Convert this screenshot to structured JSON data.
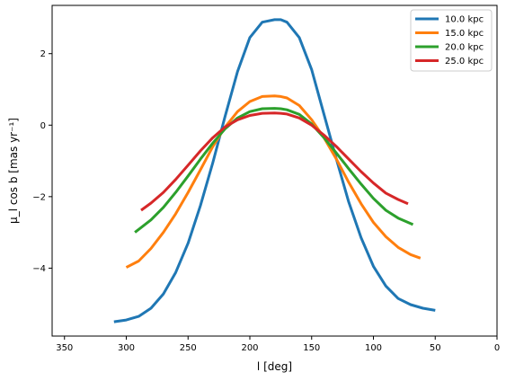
{
  "chart_data": {
    "type": "line",
    "xlabel": "l [deg]",
    "ylabel": "μ_l cos b [mas yr⁻¹]",
    "xlim": [
      360,
      0
    ],
    "ylim": [
      -5.9,
      3.35
    ],
    "x_inverted": true,
    "grid": false,
    "legend_position": "top-right",
    "xticks": [
      350,
      300,
      250,
      200,
      150,
      100,
      50,
      0
    ],
    "yticks": [
      2,
      0,
      -2,
      -4
    ],
    "xtick_labels": [
      "350",
      "300",
      "250",
      "200",
      "150",
      "100",
      "50",
      "0"
    ],
    "ytick_labels": [
      "2",
      "0",
      "−2",
      "−4"
    ],
    "series": [
      {
        "name": "10.0 kpc",
        "color": "#1f77b4",
        "x": [
          310,
          300,
          290,
          280,
          270,
          260,
          250,
          240,
          230,
          220,
          210,
          200,
          190,
          180,
          175,
          170,
          160,
          150,
          140,
          130,
          120,
          110,
          100,
          90,
          80,
          70,
          60,
          50
        ],
        "y": [
          -5.5,
          -5.45,
          -5.35,
          -5.12,
          -4.72,
          -4.12,
          -3.3,
          -2.25,
          -1.05,
          0.25,
          1.5,
          2.45,
          2.88,
          2.95,
          2.95,
          2.88,
          2.45,
          1.55,
          0.3,
          -0.95,
          -2.15,
          -3.15,
          -3.95,
          -4.5,
          -4.85,
          -5.02,
          -5.12,
          -5.18
        ]
      },
      {
        "name": "15.0 kpc",
        "color": "#ff7f0e",
        "x": [
          300,
          290,
          280,
          270,
          260,
          250,
          240,
          230,
          220,
          210,
          200,
          190,
          180,
          175,
          170,
          160,
          150,
          140,
          130,
          120,
          110,
          100,
          90,
          80,
          70,
          62
        ],
        "y": [
          -3.98,
          -3.8,
          -3.45,
          -3.0,
          -2.48,
          -1.88,
          -1.25,
          -0.6,
          -0.05,
          0.38,
          0.66,
          0.8,
          0.82,
          0.8,
          0.76,
          0.55,
          0.15,
          -0.35,
          -0.95,
          -1.6,
          -2.2,
          -2.72,
          -3.12,
          -3.42,
          -3.62,
          -3.72
        ]
      },
      {
        "name": "20.0 kpc",
        "color": "#2ca02c",
        "x": [
          293,
          280,
          270,
          260,
          250,
          240,
          230,
          220,
          210,
          200,
          190,
          180,
          175,
          170,
          160,
          150,
          140,
          130,
          120,
          110,
          100,
          90,
          80,
          68
        ],
        "y": [
          -3.0,
          -2.65,
          -2.3,
          -1.88,
          -1.42,
          -0.95,
          -0.5,
          -0.1,
          0.2,
          0.38,
          0.46,
          0.47,
          0.46,
          0.43,
          0.3,
          0.03,
          -0.35,
          -0.78,
          -1.22,
          -1.65,
          -2.05,
          -2.38,
          -2.6,
          -2.78
        ]
      },
      {
        "name": "25.0 kpc",
        "color": "#d62728",
        "x": [
          288,
          280,
          270,
          260,
          250,
          240,
          230,
          220,
          210,
          200,
          190,
          180,
          175,
          170,
          160,
          150,
          140,
          130,
          120,
          110,
          100,
          90,
          80,
          72
        ],
        "y": [
          -2.38,
          -2.18,
          -1.88,
          -1.52,
          -1.12,
          -0.72,
          -0.35,
          -0.05,
          0.15,
          0.27,
          0.33,
          0.34,
          0.33,
          0.31,
          0.2,
          0.0,
          -0.28,
          -0.6,
          -0.95,
          -1.3,
          -1.62,
          -1.9,
          -2.08,
          -2.2
        ]
      }
    ]
  }
}
